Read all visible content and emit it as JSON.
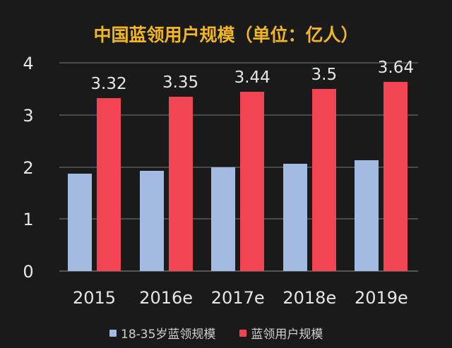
{
  "chart_data": {
    "type": "bar",
    "title": "中国蓝领用户规模（单位：亿人）",
    "xlabel": "",
    "ylabel": "",
    "categories": [
      "2015",
      "2016e",
      "2017e",
      "2018e",
      "2019e"
    ],
    "series": [
      {
        "name": "18-35岁蓝领规模",
        "color": "#a3bbe3",
        "values": [
          1.87,
          1.92,
          1.99,
          2.06,
          2.13
        ]
      },
      {
        "name": "蓝领用户规模",
        "color": "#f24452",
        "values": [
          3.32,
          3.35,
          3.44,
          3.5,
          3.64
        ]
      }
    ],
    "data_labels": [
      "3.32",
      "3.35",
      "3.44",
      "3.5",
      "3.64"
    ],
    "yticks": [
      "0",
      "1",
      "2",
      "3",
      "4"
    ],
    "ylim": [
      0,
      4
    ],
    "grid": true,
    "legend_position": "bottom"
  }
}
